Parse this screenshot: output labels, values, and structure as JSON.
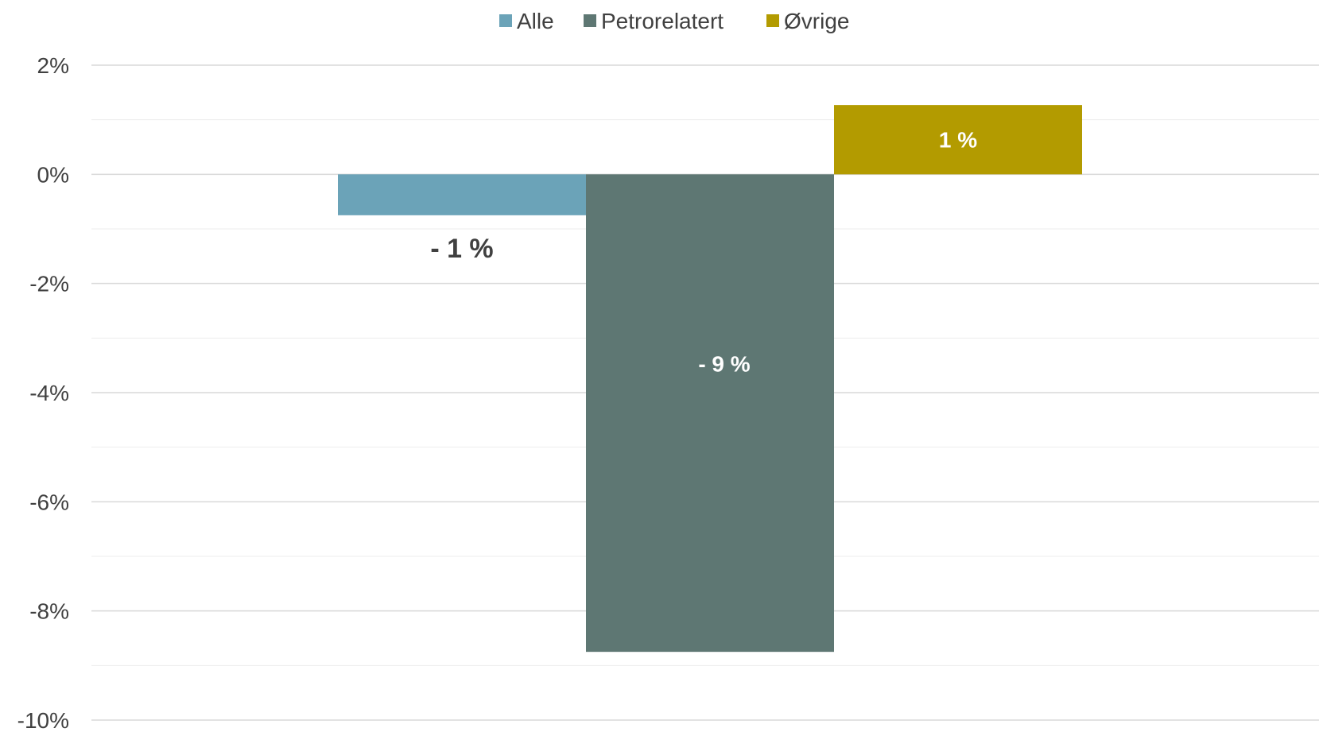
{
  "chart_data": {
    "type": "bar",
    "categories": [
      ""
    ],
    "series": [
      {
        "name": "Alle",
        "values": [
          -0.75
        ],
        "label": "- 1 %",
        "color": "#6BA3B8",
        "label_color": "#404040"
      },
      {
        "name": "Petrorelatert",
        "values": [
          -8.75
        ],
        "label": "- 9 %",
        "color": "#5E7773",
        "label_color": "#ffffff"
      },
      {
        "name": "Øvrige",
        "values": [
          1.27
        ],
        "label": "1 %",
        "color": "#B39B00",
        "label_color": "#ffffff"
      }
    ],
    "yticks": [
      2,
      0,
      -2,
      -4,
      -6,
      -8,
      -10
    ],
    "ytick_labels": [
      "2%",
      "0%",
      "-2%",
      "-4%",
      "-6%",
      "-8%",
      "-10%"
    ],
    "ylim": [
      -10,
      2
    ],
    "grid": true,
    "legend_position": "top-center",
    "title": "",
    "xlabel": "",
    "ylabel": ""
  }
}
